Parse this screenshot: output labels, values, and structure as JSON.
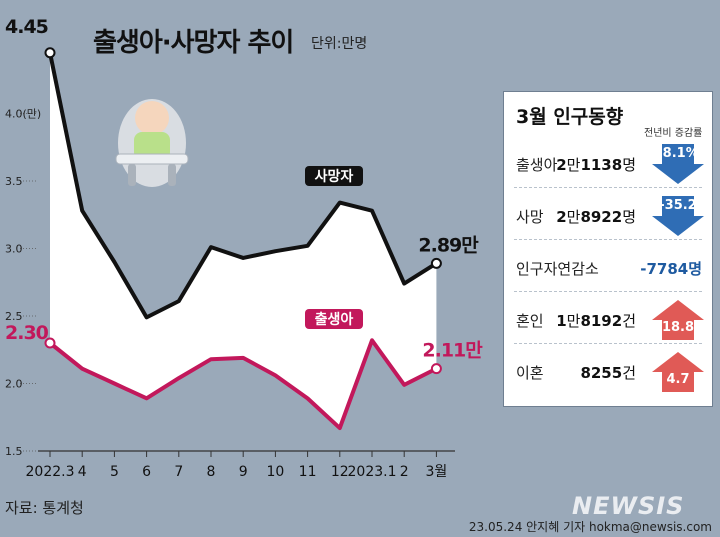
{
  "header": {
    "title": "출생아·사망자 추이",
    "unit": "단위:만명"
  },
  "chart_data": {
    "type": "line",
    "title": "출생아·사망자 추이",
    "unit": "단위:만명",
    "categories": [
      "2022.3",
      "4",
      "5",
      "6",
      "7",
      "8",
      "9",
      "10",
      "11",
      "12",
      "2023.1",
      "2",
      "3월"
    ],
    "y_ticks": [
      "1.5",
      "2.0",
      "2.5",
      "3.0",
      "3.5",
      "4.0(만)"
    ],
    "ylim": [
      1.5,
      4.5
    ],
    "series": [
      {
        "name": "사망자",
        "color": "#111111",
        "values": [
          4.45,
          3.28,
          2.9,
          2.49,
          2.61,
          3.01,
          2.93,
          2.98,
          3.02,
          3.34,
          3.28,
          2.74,
          2.89
        ],
        "start_label": "4.45",
        "end_label": "2.89만"
      },
      {
        "name": "출생아",
        "color": "#c2185b",
        "values": [
          2.3,
          2.11,
          2.0,
          1.89,
          2.04,
          2.18,
          2.19,
          2.06,
          1.89,
          1.67,
          2.32,
          1.99,
          2.11
        ],
        "start_label": "2.30",
        "end_label": "2.11만"
      }
    ],
    "grid": false
  },
  "panel": {
    "title": "3월 인구동향",
    "note": "전년비 증감률",
    "rows": [
      {
        "label": "출생아",
        "value_a": "2",
        "unit_a": "만",
        "value_b": "1138",
        "unit_b": "명",
        "change": "-8.1%",
        "direction": "down"
      },
      {
        "label": "사망",
        "value_a": "2",
        "unit_a": "만",
        "value_b": "8922",
        "unit_b": "명",
        "change": "-35.2",
        "direction": "down"
      },
      {
        "label": "인구자연감소",
        "plain_value": "-7784명"
      },
      {
        "label": "혼인",
        "value_a": "1",
        "unit_a": "만",
        "value_b": "8192",
        "unit_b": "건",
        "change": "18.8",
        "direction": "up"
      },
      {
        "label": "이혼",
        "value_a": "",
        "unit_a": "",
        "value_b": "8255",
        "unit_b": "건",
        "change": "4.7",
        "direction": "up"
      }
    ]
  },
  "footer": {
    "source": "자료: 통계청",
    "credit": "23.05.24 안지혜 기자 hokma@newsis.com",
    "logo": "NEWSIS"
  },
  "colors": {
    "background": "#9aa9b9",
    "down_arrow": "#2f6db5",
    "up_arrow": "#e05a56"
  }
}
